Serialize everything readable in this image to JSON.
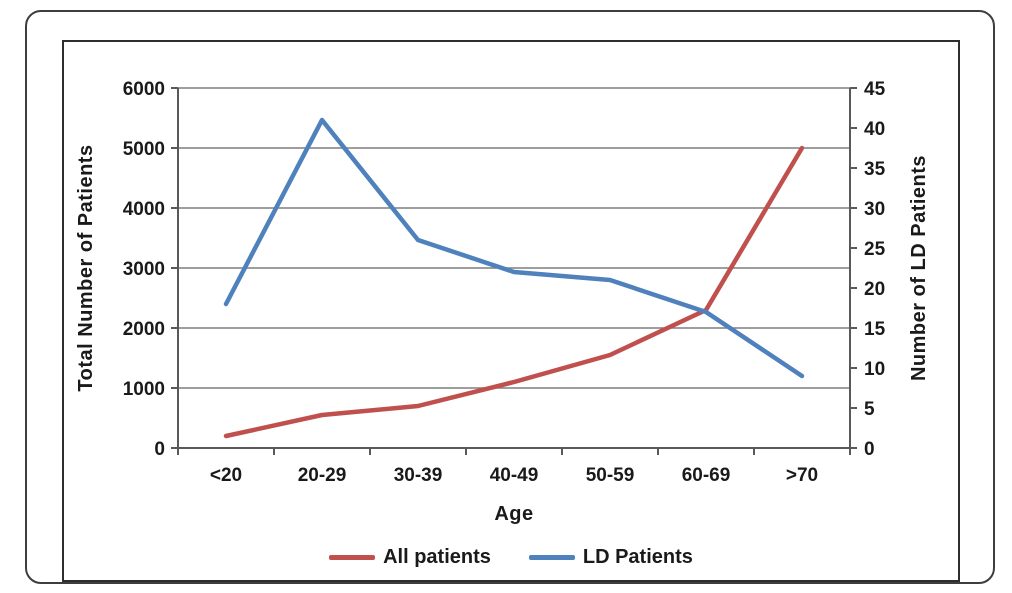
{
  "chart_data": {
    "type": "line",
    "categories": [
      "<20",
      "20-29",
      "30-39",
      "40-49",
      "50-59",
      "60-69",
      ">70"
    ],
    "x_axis_label": "Age",
    "left_axis": {
      "label": "Total Number of Patients",
      "min": 0,
      "max": 6000,
      "tick_step": 1000,
      "ticks": [
        "6000",
        "5000",
        "4000",
        "3000",
        "2000",
        "1000",
        "0"
      ]
    },
    "right_axis": {
      "label": "Number of LD Patients",
      "min": 0,
      "max": 45,
      "tick_step": 5,
      "ticks": [
        "45",
        "40",
        "35",
        "30",
        "25",
        "20",
        "15",
        "10",
        "5",
        "0"
      ]
    },
    "series": [
      {
        "name": "All patients",
        "axis": "left",
        "color": "#c0504d",
        "values": [
          200,
          550,
          700,
          1100,
          1550,
          2300,
          5000
        ]
      },
      {
        "name": "LD Patients",
        "axis": "right",
        "color": "#4f81bd",
        "values": [
          18,
          41,
          26,
          22,
          21,
          17,
          9
        ]
      }
    ],
    "legend_position": "bottom",
    "grid": {
      "color": "#7f7f7f",
      "axis_color": "#595959",
      "on": true
    }
  }
}
